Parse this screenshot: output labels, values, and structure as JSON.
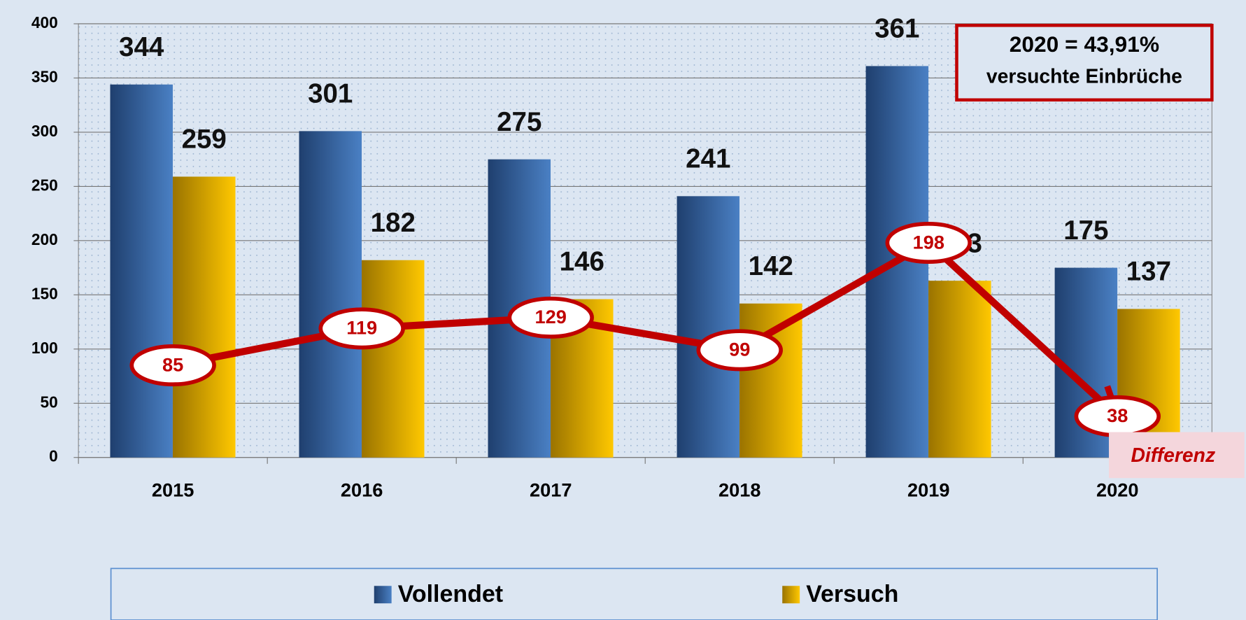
{
  "chart_data": {
    "type": "bar",
    "categories": [
      "2015",
      "2016",
      "2017",
      "2018",
      "2019",
      "2020"
    ],
    "series": [
      {
        "name": "Vollendet",
        "color": "#3a6aa8",
        "values": [
          344,
          301,
          275,
          241,
          361,
          175
        ]
      },
      {
        "name": "Versuch",
        "color": "#e0a800",
        "values": [
          259,
          182,
          146,
          142,
          163,
          137
        ]
      },
      {
        "name": "Differenz",
        "color": "#c00000",
        "type": "line",
        "values": [
          85,
          119,
          129,
          99,
          198,
          38
        ]
      }
    ],
    "ylim": [
      0,
      400
    ],
    "yticks": [
      0,
      50,
      100,
      150,
      200,
      250,
      300,
      350,
      400
    ],
    "grid": true,
    "annotation": [
      "2020 = 43,91%",
      "versuchte Einbrüche"
    ]
  }
}
